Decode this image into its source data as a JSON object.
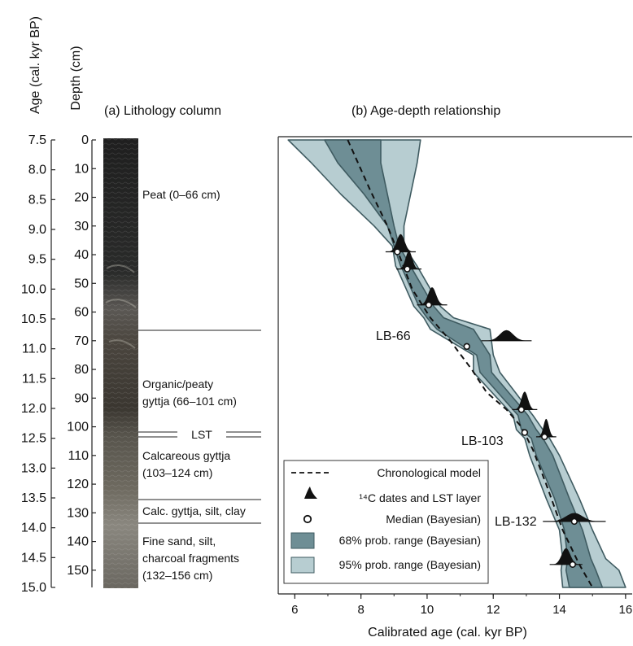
{
  "left_axis": {
    "label": "Age (cal. kyr BP)",
    "ticks": [
      "7.5",
      "8.0",
      "8.5",
      "9.0",
      "9.5",
      "10.0",
      "10.5",
      "11.0",
      "11.5",
      "12.0",
      "12.5",
      "13.0",
      "13.5",
      "14.0",
      "14.5",
      "15.0"
    ]
  },
  "depth_axis": {
    "label": "Depth (cm)",
    "ticks": [
      "0",
      "10",
      "20",
      "30",
      "40",
      "50",
      "60",
      "70",
      "80",
      "90",
      "100",
      "110",
      "120",
      "130",
      "140",
      "150"
    ]
  },
  "panel_a": {
    "title": "(a) Lithology column",
    "units": [
      {
        "lines": [
          "Peat (0–66 cm)"
        ]
      },
      {
        "lines": [
          "Organic/peaty",
          "gyttja (66–101 cm)"
        ]
      },
      {
        "lines": [
          "LST"
        ]
      },
      {
        "lines": [
          "Calcareous gyttja",
          "(103–124 cm)"
        ]
      },
      {
        "lines": [
          "Calc. gyttja, silt, clay"
        ]
      },
      {
        "lines": [
          "Fine sand, silt,",
          "charcoal fragments",
          "(132–156 cm)"
        ]
      }
    ]
  },
  "panel_b": {
    "title": "(b) Age-depth relationship",
    "sample_labels": [
      "LB-66",
      "LB-103",
      "LB-132"
    ]
  },
  "legend": {
    "items": [
      {
        "key": "model",
        "label": "Chronological model"
      },
      {
        "key": "dates",
        "label": "¹⁴C dates and LST layer"
      },
      {
        "key": "median",
        "label": "Median (Bayesian)"
      },
      {
        "key": "p68",
        "label": "68% prob. range (Bayesian)"
      },
      {
        "key": "p95",
        "label": "95% prob. range (Bayesian)"
      }
    ]
  },
  "colors": {
    "p95_fill": "#b7cdd1",
    "p68_fill": "#6e8e95",
    "envelope_stroke": "#3f5b61",
    "date_fill": "#111111"
  },
  "chart_data": {
    "type": "line",
    "xlabel": "Calibrated age (cal. kyr BP)",
    "x_ticks": [
      "6",
      "8",
      "10",
      "12",
      "14",
      "16"
    ],
    "xlim": [
      5.5,
      16.2
    ],
    "ylim": [
      0,
      156
    ],
    "y_reversed": true,
    "grid": false,
    "legend_position": "bottom-left",
    "series": [
      {
        "name": "Chronological model",
        "points": [
          [
            7.6,
            0
          ],
          [
            8.3,
            18
          ],
          [
            8.8,
            30
          ],
          [
            9.15,
            40
          ],
          [
            9.55,
            52
          ],
          [
            10.1,
            62
          ],
          [
            10.7,
            70
          ],
          [
            11.35,
            80
          ],
          [
            11.8,
            88
          ],
          [
            12.4,
            94
          ],
          [
            12.85,
            100
          ],
          [
            13.2,
            108
          ],
          [
            13.6,
            120
          ],
          [
            14.1,
            136
          ],
          [
            14.6,
            148
          ],
          [
            15.0,
            156
          ]
        ]
      },
      {
        "name": "95% prob. range (Bayesian)",
        "lower": [
          [
            5.8,
            0
          ],
          [
            6.5,
            8
          ],
          [
            7.4,
            19
          ],
          [
            8.4,
            30
          ],
          [
            8.95,
            37
          ],
          [
            9.05,
            44
          ],
          [
            9.1,
            45
          ],
          [
            9.6,
            58
          ],
          [
            9.9,
            62
          ],
          [
            10.1,
            66
          ],
          [
            11.4,
            75
          ],
          [
            11.4,
            81
          ],
          [
            12.6,
            96
          ],
          [
            12.7,
            101
          ],
          [
            12.95,
            104
          ],
          [
            13.1,
            110
          ],
          [
            13.6,
            125
          ],
          [
            14.0,
            136
          ],
          [
            14.1,
            146
          ],
          [
            14.05,
            150
          ],
          [
            14.1,
            156
          ]
        ],
        "upper": [
          [
            9.8,
            0
          ],
          [
            9.7,
            8
          ],
          [
            9.5,
            19
          ],
          [
            9.3,
            30
          ],
          [
            9.3,
            37
          ],
          [
            9.7,
            44
          ],
          [
            9.75,
            45
          ],
          [
            10.4,
            58
          ],
          [
            10.8,
            62
          ],
          [
            11.9,
            66
          ],
          [
            12.0,
            75
          ],
          [
            12.2,
            81
          ],
          [
            13.2,
            96
          ],
          [
            13.5,
            101
          ],
          [
            13.7,
            104
          ],
          [
            14.0,
            110
          ],
          [
            14.6,
            125
          ],
          [
            15.0,
            136
          ],
          [
            15.4,
            146
          ],
          [
            15.8,
            150
          ],
          [
            16.0,
            156
          ]
        ]
      },
      {
        "name": "68% prob. range (Bayesian)",
        "lower": [
          [
            6.9,
            0
          ],
          [
            7.3,
            8
          ],
          [
            8.1,
            19
          ],
          [
            8.8,
            30
          ],
          [
            9.0,
            37
          ],
          [
            9.2,
            44
          ],
          [
            9.25,
            45
          ],
          [
            9.75,
            58
          ],
          [
            10.0,
            62
          ],
          [
            10.3,
            66
          ],
          [
            11.5,
            75
          ],
          [
            11.6,
            81
          ],
          [
            12.75,
            96
          ],
          [
            12.85,
            101
          ],
          [
            13.15,
            104
          ],
          [
            13.3,
            110
          ],
          [
            13.85,
            125
          ],
          [
            14.15,
            136
          ],
          [
            14.25,
            146
          ],
          [
            14.2,
            150
          ],
          [
            14.3,
            156
          ]
        ],
        "upper": [
          [
            8.6,
            0
          ],
          [
            8.6,
            8
          ],
          [
            8.8,
            19
          ],
          [
            9.0,
            30
          ],
          [
            9.15,
            37
          ],
          [
            9.5,
            44
          ],
          [
            9.55,
            45
          ],
          [
            10.2,
            58
          ],
          [
            10.5,
            62
          ],
          [
            11.4,
            66
          ],
          [
            11.9,
            75
          ],
          [
            11.95,
            81
          ],
          [
            13.05,
            96
          ],
          [
            13.3,
            101
          ],
          [
            13.5,
            104
          ],
          [
            13.8,
            110
          ],
          [
            14.3,
            125
          ],
          [
            14.7,
            136
          ],
          [
            14.95,
            146
          ],
          [
            15.1,
            150
          ],
          [
            15.3,
            156
          ]
        ]
      },
      {
        "name": "Median (Bayesian)",
        "points": [
          [
            9.1,
            39
          ],
          [
            9.4,
            45
          ],
          [
            10.05,
            57.5
          ],
          [
            11.2,
            72
          ],
          [
            12.85,
            94
          ],
          [
            12.95,
            102
          ],
          [
            13.55,
            103.5
          ],
          [
            14.45,
            133
          ],
          [
            14.4,
            148
          ]
        ]
      },
      {
        "name": "¹⁴C dates and LST layer",
        "dates": [
          {
            "mean": 9.2,
            "sd": 0.12,
            "depth": 39
          },
          {
            "mean": 9.45,
            "sd": 0.1,
            "depth": 45
          },
          {
            "mean": 10.15,
            "sd": 0.12,
            "depth": 57.5
          },
          {
            "mean": 12.4,
            "sd": 0.2,
            "depth": 70
          },
          {
            "mean": 12.95,
            "sd": 0.1,
            "depth": 94
          },
          {
            "mean": 13.6,
            "sd": 0.08,
            "depth": 103.5
          },
          {
            "mean": 14.45,
            "sd": 0.25,
            "depth": 133
          },
          {
            "mean": 14.2,
            "sd": 0.13,
            "depth": 148
          }
        ]
      }
    ]
  }
}
